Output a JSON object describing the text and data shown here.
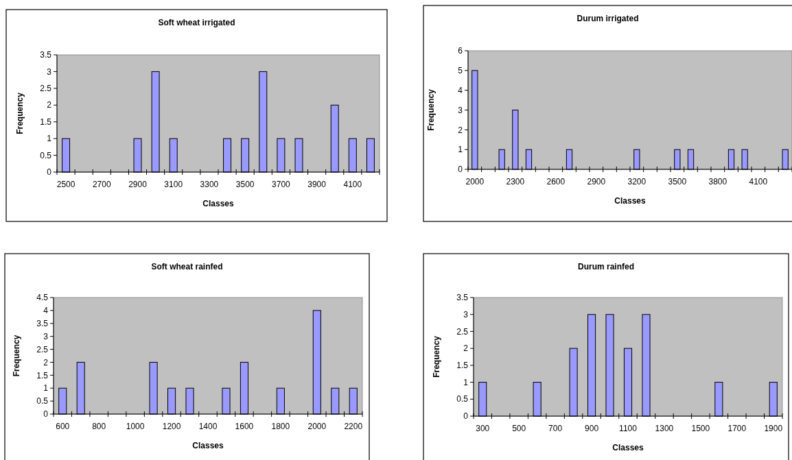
{
  "chart_data": [
    {
      "type": "bar",
      "title": "Soft wheat irrigated",
      "xlabel": "Classes",
      "ylabel": "Frequency",
      "categories": [
        "2500",
        null,
        "2700",
        null,
        "2900",
        null,
        "3100",
        null,
        "3300",
        null,
        "3500",
        null,
        "3700",
        null,
        "3900",
        null,
        "4100",
        null
      ],
      "values": [
        1,
        0,
        0,
        0,
        1,
        3,
        1,
        0,
        0,
        1,
        1,
        3,
        1,
        1,
        0,
        2,
        1,
        1
      ],
      "color": "#9999ff",
      "ylim": [
        0,
        3.5
      ],
      "yticks": [
        0,
        0.5,
        1,
        1.5,
        2,
        2.5,
        3,
        3.5
      ],
      "grid": false
    },
    {
      "type": "bar",
      "title": "Durum irrigated",
      "xlabel": "Classes",
      "ylabel": "Frequency",
      "categories": [
        "2000",
        null,
        null,
        "2300",
        null,
        null,
        "2600",
        null,
        null,
        "2900",
        null,
        null,
        "3200",
        null,
        null,
        "3500",
        null,
        null,
        "3800",
        null,
        null,
        "4100",
        null,
        null
      ],
      "values": [
        5,
        0,
        1,
        3,
        1,
        0,
        0,
        1,
        0,
        0,
        0,
        0,
        1,
        0,
        0,
        1,
        1,
        0,
        0,
        1,
        1,
        0,
        0,
        1
      ],
      "color": "#9999ff",
      "ylim": [
        0,
        6
      ],
      "yticks": [
        0,
        1,
        2,
        3,
        4,
        5,
        6
      ],
      "grid": false
    },
    {
      "type": "bar",
      "title": "Soft wheat rainfed",
      "xlabel": "Classes",
      "ylabel": "Frequency",
      "categories": [
        "600",
        null,
        "800",
        null,
        "1000",
        null,
        "1200",
        null,
        "1400",
        null,
        "1600",
        null,
        "1800",
        null,
        "2000",
        null,
        "2200"
      ],
      "values": [
        1,
        2,
        0,
        0,
        0,
        2,
        1,
        1,
        0,
        1,
        2,
        0,
        1,
        0,
        4,
        1,
        1
      ],
      "color": "#9999ff",
      "ylim": [
        0,
        4.5
      ],
      "yticks": [
        0,
        0.5,
        1,
        1.5,
        2,
        2.5,
        3,
        3.5,
        4,
        4.5
      ],
      "grid": false
    },
    {
      "type": "bar",
      "title": "Durum rainfed",
      "xlabel": "Classes",
      "ylabel": "Frequency",
      "categories": [
        "300",
        null,
        "500",
        null,
        "700",
        null,
        "900",
        null,
        "1100",
        null,
        "1300",
        null,
        "1500",
        null,
        "1700",
        null,
        "1900"
      ],
      "values": [
        1,
        0,
        0,
        1,
        0,
        2,
        3,
        3,
        2,
        3,
        0,
        0,
        0,
        1,
        0,
        0,
        1
      ],
      "color": "#9999ff",
      "ylim": [
        0,
        3.5
      ],
      "yticks": [
        0,
        0.5,
        1,
        1.5,
        2,
        2.5,
        3,
        3.5
      ],
      "grid": false
    }
  ]
}
